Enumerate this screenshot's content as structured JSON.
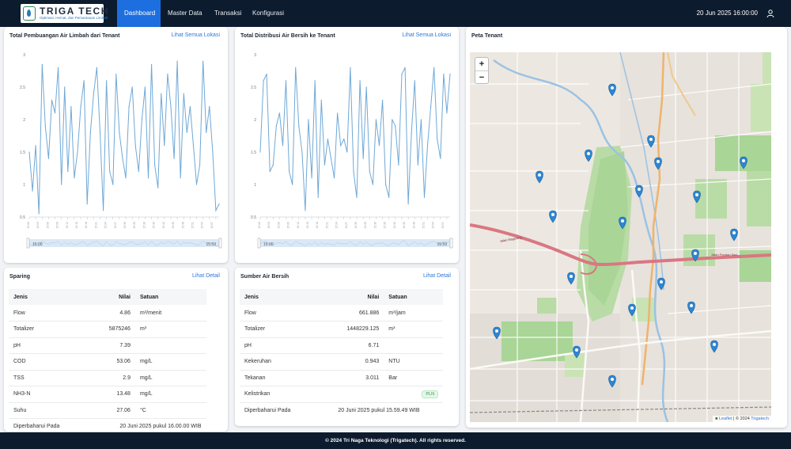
{
  "brand": {
    "title": "TRIGA TECH",
    "subtitle": "Optimasi, Hemat, dan Pemantauan Limbah"
  },
  "nav": [
    {
      "label": "Dashboard",
      "active": true
    },
    {
      "label": "Master Data",
      "active": false
    },
    {
      "label": "Transaksi",
      "active": false
    },
    {
      "label": "Konfigurasi",
      "active": false
    }
  ],
  "header": {
    "datetime": "20 Jun 2025 16:00:00",
    "user_icon": "user-icon"
  },
  "card_limbah": {
    "title": "Total Pembuangan Air Limbah dari Tenant",
    "link": "Lihat Semua Lokasi",
    "range_start": "15:00",
    "range_end": "15:59"
  },
  "card_bersih": {
    "title": "Total Distribusi Air Bersih ke Tenant",
    "link": "Lihat Semua Lokasi",
    "range_start": "15:00",
    "range_end": "15:59"
  },
  "card_map": {
    "title": "Peta Tenant",
    "zoom_in": "+",
    "zoom_out": "−",
    "attribution_leaflet": "Leaflet",
    "attribution_sep": "| © 2024",
    "attribution_brand": "Trigatech",
    "labels": [
      "Jalan Pandan Sari",
      "Jalan Magelang"
    ]
  },
  "card_sparing": {
    "title": "Sparing",
    "link": "Lihat Detail",
    "headers": [
      "Jenis",
      "Nilai",
      "Satuan"
    ],
    "rows": [
      {
        "jenis": "Flow",
        "nilai": "4.86",
        "satuan": "m³/menit"
      },
      {
        "jenis": "Totalizer",
        "nilai": "5875246",
        "satuan": "m³"
      },
      {
        "jenis": "pH",
        "nilai": "7.39",
        "satuan": ""
      },
      {
        "jenis": "COD",
        "nilai": "53.06",
        "satuan": "mg/L"
      },
      {
        "jenis": "TSS",
        "nilai": "2.9",
        "satuan": "mg/L"
      },
      {
        "jenis": "NH3-N",
        "nilai": "13.48",
        "satuan": "mg/L"
      },
      {
        "jenis": "Suhu",
        "nilai": "27.06",
        "satuan": "°C"
      }
    ],
    "updated_label": "Diperbaharui Pada",
    "updated_value": "20 Juni 2025 pukul 16.00.00 WIB"
  },
  "card_sumber": {
    "title": "Sumber Air Bersih",
    "link": "Lihat Detail",
    "headers": [
      "Jenis",
      "Nilai",
      "Satuan"
    ],
    "rows": [
      {
        "jenis": "Flow",
        "nilai": "661.886",
        "satuan": "m³/jam"
      },
      {
        "jenis": "Totalizer",
        "nilai": "1448229.125",
        "satuan": "m³"
      },
      {
        "jenis": "pH",
        "nilai": "6.71",
        "satuan": ""
      },
      {
        "jenis": "Kekeruhan",
        "nilai": "0.943",
        "satuan": "NTU"
      },
      {
        "jenis": "Tekanan",
        "nilai": "3.011",
        "satuan": "Bar"
      }
    ],
    "kelistrikan_label": "Kelistrikan",
    "kelistrikan_value": "PLN",
    "updated_label": "Diperbaharui Pada",
    "updated_value": "20 Juni 2025 pukul 15.59.49 WIB"
  },
  "footer": {
    "text": "© 2024 Tri Naga Teknologi (Trigatech). All rights reserved."
  },
  "colors": {
    "nav_bg": "#0d1b2e",
    "active": "#1d6fe0",
    "line": "#6fa8d6",
    "link": "#2b79d9",
    "pin": "#2d86d3"
  },
  "chart_data": [
    {
      "type": "line",
      "title": "Total Pembuangan Air Limbah dari Tenant",
      "x_range": [
        "15:00",
        "15:59"
      ],
      "ylim": [
        0.5,
        3
      ],
      "yticks": [
        0.5,
        1,
        1.5,
        2,
        2.5,
        3
      ],
      "grid": false,
      "values": [
        1.5,
        0.9,
        1.6,
        0.55,
        2.85,
        1.9,
        1.4,
        2.3,
        2.1,
        2.8,
        1.0,
        2.5,
        1.2,
        2.2,
        1.1,
        1.5,
        2.2,
        2.6,
        0.7,
        1.8,
        2.4,
        2.8,
        1.8,
        0.6,
        2.6,
        1.2,
        1.0,
        2.7,
        1.8,
        1.4,
        1.1,
        2.2,
        2.5,
        1.6,
        1.2,
        2.0,
        2.5,
        1.1,
        2.85,
        1.3,
        0.95,
        2.4,
        1.6,
        2.7,
        2.2,
        1.4,
        2.9,
        1.1,
        2.4,
        1.8,
        2.2,
        1.6,
        1.0,
        1.3,
        2.9,
        1.8,
        2.2,
        1.5,
        0.6,
        0.7
      ]
    },
    {
      "type": "line",
      "title": "Total Distribusi Air Bersih ke Tenant",
      "x_range": [
        "15:00",
        "15:59"
      ],
      "ylim": [
        0.5,
        3
      ],
      "yticks": [
        0.5,
        1,
        1.5,
        2,
        2.5,
        3
      ],
      "grid": false,
      "values": [
        1.5,
        2.6,
        2.7,
        1.2,
        1.3,
        1.9,
        2.1,
        1.6,
        2.6,
        1.2,
        1.0,
        2.8,
        1.9,
        1.5,
        0.6,
        2.0,
        1.1,
        2.6,
        0.8,
        2.3,
        1.3,
        1.7,
        1.4,
        1.1,
        2.1,
        1.6,
        1.7,
        1.5,
        2.8,
        1.2,
        0.8,
        2.6,
        1.4,
        2.5,
        1.2,
        1.0,
        2.0,
        1.6,
        2.3,
        1.0,
        0.8,
        2.0,
        1.9,
        1.3,
        2.7,
        2.8,
        0.7,
        1.8,
        2.6,
        1.3,
        2.0,
        0.8,
        1.6,
        2.2,
        2.8,
        1.7,
        1.4,
        2.7,
        2.1,
        2.7
      ]
    }
  ]
}
